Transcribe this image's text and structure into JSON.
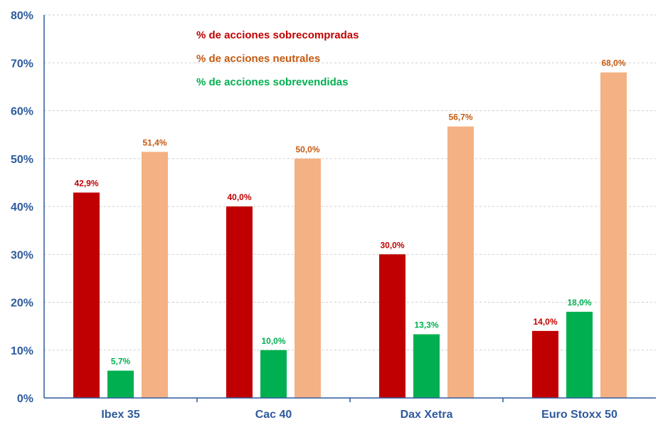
{
  "chart_data": {
    "type": "bar",
    "categories": [
      "Ibex 35",
      "Cac 40",
      "Dax Xetra",
      "Euro Stoxx 50"
    ],
    "series": [
      {
        "name": "% de acciones sobrecompradas",
        "color": "#c00000",
        "values": [
          42.9,
          40.0,
          30.0,
          14.0
        ],
        "labels": [
          "42,9%",
          "40,0%",
          "30,0%",
          "14,0%"
        ]
      },
      {
        "name": "% de acciones sobrevendidas",
        "color": "#00b050",
        "values": [
          5.7,
          10.0,
          13.3,
          18.0
        ],
        "labels": [
          "5,7%",
          "10,0%",
          "13,3%",
          "18,0%"
        ]
      },
      {
        "name": "% de acciones neutrales",
        "color": "#f4b183",
        "label_color": "#c55a11",
        "values": [
          51.4,
          50.0,
          56.7,
          68.0
        ],
        "labels": [
          "51,4%",
          "50,0%",
          "56,7%",
          "68,0%"
        ]
      }
    ],
    "legend": [
      {
        "text": "% de acciones sobrecompradas",
        "color": "#c00000"
      },
      {
        "text": "% de acciones neutrales",
        "color": "#c55a11"
      },
      {
        "text": "% de acciones sobrevendidas",
        "color": "#00b050"
      }
    ],
    "legend_position": "top-left",
    "ylim": [
      0,
      80
    ],
    "yticks": [
      "0%",
      "10%",
      "20%",
      "30%",
      "40%",
      "50%",
      "60%",
      "70%",
      "80%"
    ],
    "grid": true
  }
}
